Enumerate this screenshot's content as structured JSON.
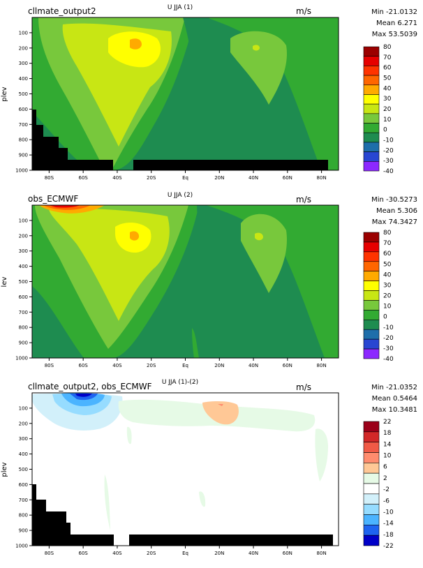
{
  "chart_data": [
    {
      "type": "heatmap",
      "title_left": "cllmate_output2",
      "title_center": "U JJA (1)",
      "units": "m/s",
      "ylabel": "plev",
      "stats": {
        "min": "Min -21.0132",
        "mean": "Mean 6.271",
        "max": "Max 53.5039"
      },
      "xticks": [
        "80S",
        "60S",
        "40S",
        "20S",
        "Eq",
        "20N",
        "40N",
        "60N",
        "80N"
      ],
      "yticks": [
        "100",
        "200",
        "300",
        "400",
        "500",
        "600",
        "700",
        "800",
        "900",
        "1000"
      ],
      "xlim": [
        -90,
        90
      ],
      "ylim": [
        1000,
        0
      ],
      "colorbar": {
        "labels": [
          "80",
          "70",
          "60",
          "50",
          "40",
          "30",
          "20",
          "10",
          "0",
          "-10",
          "-20",
          "-30",
          "-40"
        ],
        "colors": [
          "#9b0000",
          "#e60000",
          "#ff3300",
          "#ff6600",
          "#ffaa00",
          "#ffff00",
          "#c8e614",
          "#78c83c",
          "#32aa32",
          "#1e8c50",
          "#1e6eaa",
          "#2846d2",
          "#8c28ff"
        ]
      },
      "features": "zonal mean wind: westerly jets near 30S and 40N; masked topography in southern high latitudes"
    },
    {
      "type": "heatmap",
      "title_left": "obs_ECMWF",
      "title_center": "U JJA (2)",
      "units": "m/s",
      "ylabel": "lev",
      "stats": {
        "min": "Min -30.5273",
        "mean": "Mean 5.306",
        "max": "Max 74.3427"
      },
      "xticks": [
        "80S",
        "60S",
        "40S",
        "20S",
        "Eq",
        "20N",
        "40N",
        "60N",
        "80N"
      ],
      "yticks": [
        "100",
        "200",
        "300",
        "400",
        "500",
        "600",
        "700",
        "800",
        "900",
        "1000"
      ],
      "xlim": [
        -90,
        90
      ],
      "ylim": [
        1000,
        0
      ],
      "colorbar": {
        "labels": [
          "80",
          "70",
          "60",
          "50",
          "40",
          "30",
          "20",
          "10",
          "0",
          "-10",
          "-20",
          "-30",
          "-40"
        ],
        "colors": [
          "#9b0000",
          "#e60000",
          "#ff3300",
          "#ff6600",
          "#ffaa00",
          "#ffff00",
          "#c8e614",
          "#78c83c",
          "#32aa32",
          "#1e8c50",
          "#1e6eaa",
          "#2846d2",
          "#8c28ff"
        ]
      },
      "features": "observed zonal mean wind with stronger polar jet near 60S top"
    },
    {
      "type": "heatmap",
      "title_left": "cllmate_output2, obs_ECMWF",
      "title_center": "U JJA (1)-(2)",
      "units": "m/s",
      "ylabel": "plev",
      "stats": {
        "min": "Min -21.0352",
        "mean": "Mean 0.5464",
        "max": "Max 10.3481"
      },
      "xticks": [
        "80S",
        "60S",
        "40S",
        "20S",
        "Eq",
        "20N",
        "40N",
        "60N",
        "80N"
      ],
      "yticks": [
        "100",
        "200",
        "300",
        "400",
        "500",
        "600",
        "700",
        "800",
        "900",
        "1000"
      ],
      "xlim": [
        -90,
        90
      ],
      "ylim": [
        1000,
        0
      ],
      "colorbar": {
        "labels": [
          "22",
          "18",
          "14",
          "10",
          "6",
          "2",
          "-2",
          "-6",
          "-10",
          "-14",
          "-18",
          "-22"
        ],
        "colors": [
          "#9b0019",
          "#d22828",
          "#f05a46",
          "#ff8c6e",
          "#ffc896",
          "#e6fae6",
          "#ffffff",
          "#d2f0fa",
          "#96dcff",
          "#4bb4ff",
          "#1e64f0",
          "#0000c8"
        ]
      },
      "features": "difference field: negative near 60S-40S top, positive near 30N top"
    }
  ]
}
